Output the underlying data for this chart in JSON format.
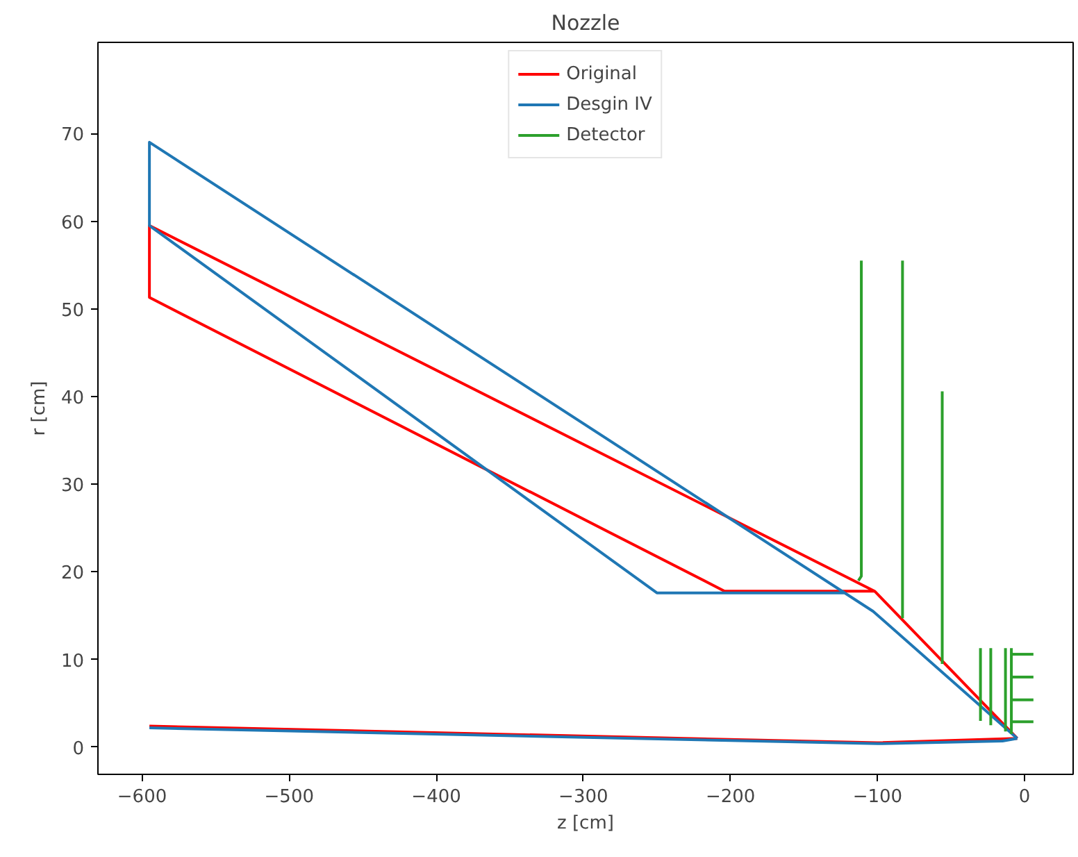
{
  "chart_data": {
    "type": "line",
    "title": "Nozzle",
    "xlabel": "z [cm]",
    "ylabel": "r [cm]",
    "xlim": [
      -630,
      33
    ],
    "ylim": [
      -3.1,
      80.4
    ],
    "xticks": [
      {
        "value": -600,
        "label": "−600"
      },
      {
        "value": -500,
        "label": "−500"
      },
      {
        "value": -400,
        "label": "−400"
      },
      {
        "value": -300,
        "label": "−300"
      },
      {
        "value": -200,
        "label": "−200"
      },
      {
        "value": -100,
        "label": "−100"
      },
      0
    ],
    "yticks": [
      0,
      10,
      20,
      30,
      40,
      50,
      60,
      70
    ],
    "grid": false,
    "legend": "top",
    "line_style": "solid",
    "marker": "none",
    "series": [
      {
        "name": "Original",
        "color": "#ff0000",
        "x": [
          -5,
          -102,
          -595,
          -595,
          -204,
          -102,
          null,
          -595,
          -100,
          -5
        ],
        "values": [
          1,
          17.8,
          59.5,
          51.3,
          17.8,
          17.8,
          null,
          2.4,
          0.5,
          1
        ]
      },
      {
        "name": "Desgin IV",
        "color": "#1f77b4",
        "x": [
          -5,
          -103,
          -595,
          -595,
          -250,
          -122,
          null,
          -595,
          -100,
          -15,
          -5
        ],
        "values": [
          1,
          15.5,
          69,
          59.5,
          17.6,
          17.6,
          null,
          2.2,
          0.4,
          0.7,
          1
        ]
      },
      {
        "name": "Detector",
        "color": "#2ca02c",
        "x": [
          -113,
          -111,
          -111,
          null,
          -83,
          -83,
          null,
          -56,
          -56,
          null,
          -30,
          -30,
          null,
          -23,
          -23,
          null,
          -13,
          -13,
          null,
          -9,
          -9
        ],
        "values": [
          19,
          19.5,
          55.5,
          null,
          55.5,
          14.7,
          null,
          40.6,
          9.5,
          null,
          11.3,
          3,
          null,
          11.3,
          2.5,
          null,
          11.3,
          1.8,
          null,
          11.3,
          1.5
        ]
      },
      {
        "color": "#2ca02c",
        "x": [
          -9,
          6
        ],
        "values": [
          10.6,
          10.6
        ]
      },
      {
        "color": "#2ca02c",
        "x": [
          -9,
          6
        ],
        "values": [
          8,
          8
        ]
      },
      {
        "color": "#2ca02c",
        "x": [
          -9,
          6
        ],
        "values": [
          5.4,
          5.4
        ]
      },
      {
        "color": "#2ca02c",
        "x": [
          -9,
          6
        ],
        "values": [
          2.9,
          2.9
        ]
      }
    ]
  }
}
